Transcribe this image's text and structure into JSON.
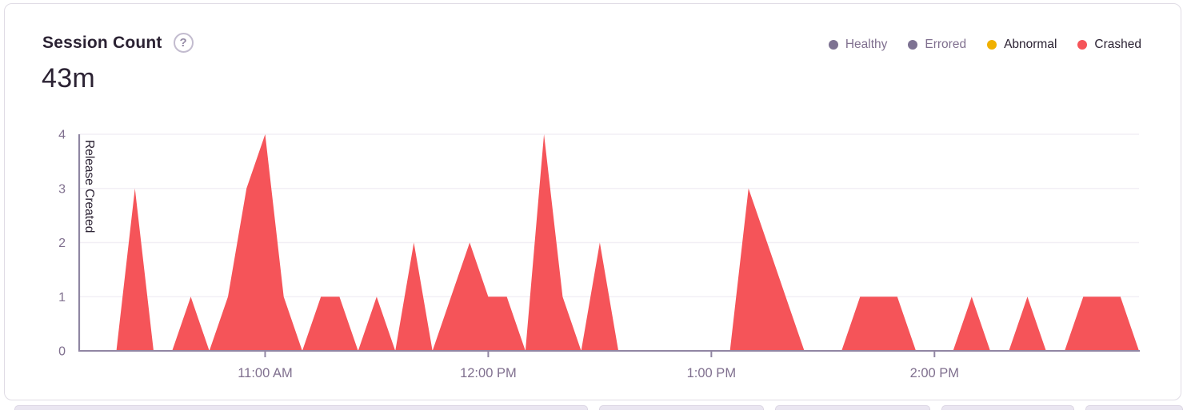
{
  "card": {
    "title": "Session Count",
    "help_icon": "?",
    "total": "43m"
  },
  "legend": [
    {
      "label": "Healthy",
      "color": "#7d7292",
      "label_color": "#80708f",
      "active": false
    },
    {
      "label": "Errored",
      "color": "#7d7292",
      "label_color": "#80708f",
      "active": false
    },
    {
      "label": "Abnormal",
      "color": "#f0b000",
      "label_color": "#2b2233",
      "active": true
    },
    {
      "label": "Crashed",
      "color": "#f55459",
      "label_color": "#2b2233",
      "active": true
    }
  ],
  "chart_data": {
    "type": "area",
    "title": "Session Count",
    "xlabel": "",
    "ylabel": "",
    "ylim": [
      0,
      4
    ],
    "y_ticks": [
      0,
      1,
      2,
      3,
      4
    ],
    "grid": true,
    "legend_position": "top-right",
    "x": [
      "10:10 AM",
      "10:15 AM",
      "10:20 AM",
      "10:25 AM",
      "10:30 AM",
      "10:35 AM",
      "10:40 AM",
      "10:45 AM",
      "10:50 AM",
      "10:55 AM",
      "11:00 AM",
      "11:05 AM",
      "11:10 AM",
      "11:15 AM",
      "11:20 AM",
      "11:25 AM",
      "11:30 AM",
      "11:35 AM",
      "11:40 AM",
      "11:45 AM",
      "11:50 AM",
      "11:55 AM",
      "12:00 PM",
      "12:05 PM",
      "12:10 PM",
      "12:15 PM",
      "12:20 PM",
      "12:25 PM",
      "12:30 PM",
      "12:35 PM",
      "12:40 PM",
      "12:45 PM",
      "12:50 PM",
      "12:55 PM",
      "1:00 PM",
      "1:05 PM",
      "1:10 PM",
      "1:15 PM",
      "1:20 PM",
      "1:25 PM",
      "1:30 PM",
      "1:35 PM",
      "1:40 PM",
      "1:45 PM",
      "1:50 PM",
      "1:55 PM",
      "2:00 PM",
      "2:05 PM",
      "2:10 PM",
      "2:15 PM",
      "2:20 PM",
      "2:25 PM",
      "2:30 PM",
      "2:35 PM",
      "2:40 PM",
      "2:45 PM",
      "2:50 PM",
      "2:55 PM"
    ],
    "series": [
      {
        "name": "Crashed",
        "color": "#f55459",
        "values": [
          0,
          0,
          0,
          3,
          0,
          0,
          1,
          0,
          1,
          3,
          4,
          1,
          0,
          1,
          1,
          0,
          1,
          0,
          2,
          0,
          1,
          2,
          1,
          1,
          0,
          4,
          1,
          0,
          2,
          0,
          0,
          0,
          0,
          0,
          0,
          0,
          3,
          2,
          1,
          0,
          0,
          0,
          1,
          1,
          1,
          0,
          0,
          0,
          1,
          0,
          0,
          1,
          0,
          0,
          1,
          1,
          1,
          0
        ]
      }
    ],
    "x_tick_labels": [
      {
        "label": "11:00 AM",
        "index": 10
      },
      {
        "label": "12:00 PM",
        "index": 22
      },
      {
        "label": "1:00 PM",
        "index": 34
      },
      {
        "label": "2:00 PM",
        "index": 46
      }
    ],
    "annotations": [
      {
        "label": "Release Created",
        "index": 0
      }
    ]
  },
  "colors": {
    "axis_text": "#80708f",
    "dark_text": "#2b2233",
    "gridline": "#f2eff5",
    "axis_line": "#9186a3",
    "release_line": "#8f86a2",
    "card_border": "#e0dce5",
    "crashed": "#f55459",
    "abnormal": "#f0b000",
    "muted_series": "#7d7292"
  }
}
